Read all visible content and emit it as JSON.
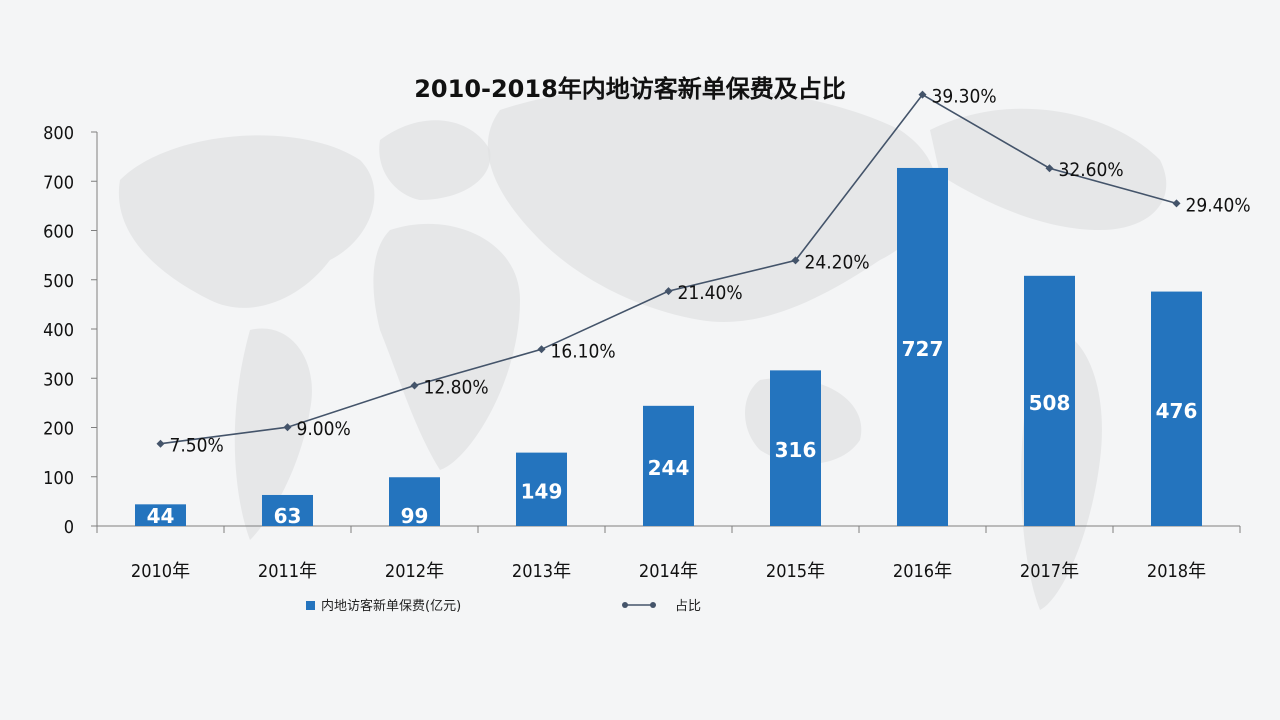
{
  "colors": {
    "bar": "#2474be",
    "line": "#44546a",
    "axis": "#7f7f7f",
    "text": "#111111",
    "bar_label": "#ffffff",
    "map": "#dfe1e3",
    "background": "#f4f5f6"
  },
  "chart_data": {
    "type": "bar",
    "title": "2010-2018年内地访客新单保费及占比",
    "categories": [
      "2010年",
      "2011年",
      "2012年",
      "2013年",
      "2014年",
      "2015年",
      "2016年",
      "2017年",
      "2018年"
    ],
    "ylim": [
      0,
      800
    ],
    "yticks": [
      0,
      100,
      200,
      300,
      400,
      500,
      600,
      700,
      800
    ],
    "ytick_labels": [
      "0",
      "100",
      "200",
      "300",
      "400",
      "500",
      "600",
      "700",
      "800"
    ],
    "grid": false,
    "legend_placement": "bottom",
    "series": [
      {
        "name": "内地访客新单保费(亿元)",
        "type": "bar",
        "values": [
          44,
          63,
          99,
          149,
          244,
          316,
          727,
          508,
          476
        ],
        "labels": [
          "44",
          "63",
          "99",
          "149",
          "244",
          "316",
          "727",
          "508",
          "476"
        ]
      },
      {
        "name": "占比",
        "type": "line",
        "values": [
          7.5,
          9.0,
          12.8,
          16.1,
          21.4,
          24.2,
          39.3,
          32.6,
          29.4
        ],
        "labels": [
          "7.50%",
          "9.00%",
          "12.80%",
          "16.10%",
          "21.40%",
          "24.20%",
          "39.30%",
          "32.60%",
          "29.40%"
        ],
        "ylim": [
          0,
          40
        ]
      }
    ]
  }
}
